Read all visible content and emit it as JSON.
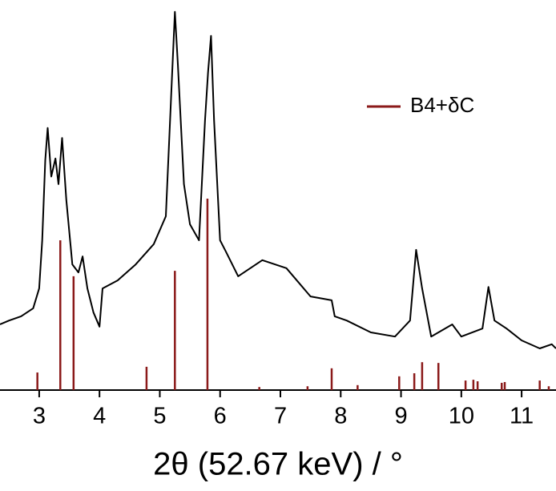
{
  "chart_data": {
    "type": "line",
    "x_label": "2θ (52.67 keV) / °",
    "xlim": [
      2.35,
      11.57
    ],
    "xticks": [
      3,
      4,
      5,
      6,
      7,
      8,
      9,
      10,
      11
    ],
    "ylim": [
      0,
      100
    ],
    "grid": false,
    "legend_position": "upper right",
    "series": [
      {
        "type": "line",
        "color": "#000000",
        "x": [
          2.35,
          2.5,
          2.7,
          2.9,
          3.0,
          3.05,
          3.1,
          3.14,
          3.2,
          3.27,
          3.32,
          3.38,
          3.45,
          3.55,
          3.65,
          3.72,
          3.8,
          3.9,
          4.0,
          4.05,
          4.3,
          4.6,
          4.9,
          5.1,
          5.2,
          5.25,
          5.3,
          5.4,
          5.5,
          5.65,
          5.75,
          5.8,
          5.85,
          5.9,
          6.0,
          6.1,
          6.3,
          6.7,
          7.1,
          7.5,
          7.85,
          7.9,
          8.1,
          8.5,
          8.9,
          9.15,
          9.25,
          9.35,
          9.5,
          9.85,
          10.0,
          10.35,
          10.45,
          10.55,
          10.75,
          11.0,
          11.3,
          11.5,
          11.57
        ],
        "values": [
          17.2,
          18.2,
          19.3,
          21.4,
          26.6,
          39.2,
          60.2,
          68.6,
          55.9,
          60.6,
          53.9,
          66.0,
          49.7,
          32.9,
          30.8,
          35.0,
          26.6,
          20.3,
          16.6,
          26.6,
          28.7,
          32.9,
          38.2,
          45.5,
          81.1,
          99.0,
          85.3,
          53.9,
          43.4,
          39.2,
          70.6,
          83.2,
          92.7,
          70.6,
          39.2,
          36.1,
          29.8,
          34.0,
          31.9,
          24.5,
          23.5,
          19.3,
          18.2,
          15.1,
          14.0,
          18.2,
          36.7,
          26.6,
          14.0,
          17.2,
          14.0,
          16.1,
          27.0,
          18.2,
          16.1,
          13.0,
          10.9,
          12.0,
          10.9
        ]
      },
      {
        "type": "stick",
        "name": "B4+δC",
        "color": "#8b1a1a",
        "x": [
          2.97,
          3.35,
          3.57,
          4.78,
          5.25,
          5.79,
          6.65,
          7.45,
          7.85,
          8.28,
          8.97,
          9.22,
          9.35,
          9.62,
          10.07,
          10.2,
          10.27,
          10.67,
          10.72,
          11.3,
          11.45
        ],
        "values": [
          4.6,
          39.2,
          29.8,
          6.1,
          31.2,
          50.1,
          0.8,
          1.0,
          5.7,
          1.3,
          3.6,
          4.4,
          7.3,
          7.1,
          2.5,
          2.7,
          2.3,
          1.9,
          2.1,
          2.5,
          1.0
        ]
      }
    ]
  }
}
